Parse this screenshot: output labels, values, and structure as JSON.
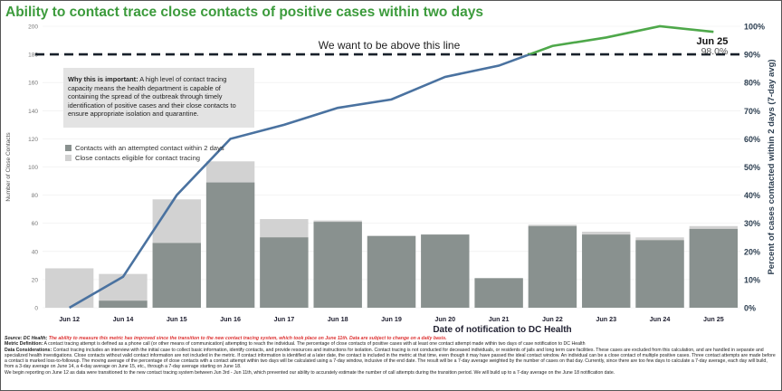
{
  "title": "Ability to contact trace close contacts of positive cases within two days",
  "info_box": {
    "heading": "Why this is important:",
    "body": " A high level of contact tracing capacity means the health department is capable of containing the spread of the outbreak through timely identification of positive cases and their close contacts to ensure appropriate isolation and quarantine."
  },
  "target_label": "We want to be above this line",
  "footnotes": {
    "source_label": "Source: DC Health;",
    "source_text": " The ability to measure this metric has improved since the transition to the new contact tracing system, which took place on June 11th. Data are subject to change on a daily basis.",
    "metric_label": "Metric Definition:",
    "metric_text": " A contact tracing attempt is defined as a phone call (or other means of communication) attempting to reach the individual. The percentage of close contacts of positive cases with at least one contact attempt made within two days of case notification to DC Health",
    "data_label": "Data Considerations:",
    "data_text": " Contact tracing includes an interview with the initial case to collect basic information, identify contacts, and provide resources and instructions for isolation. Contact tracing is not conducted for deceased individuals, or residents of jails and long term care facilities. These cases are excluded from this calculation, and are handled in separate and specialized health investigations. Close contacts without valid contact information are not included in the metric. If contact information is identified at a later date, the contact is included in the metric at that time, even though it may have passed the ideal contact window. An individual can be a close contact of multiple positive cases. Three contact attempts are made before a contact is marked loss-to-followup. The moving average of the percentage of close contacts with a contact attempt within two days will be calculated using a 7-day window, inclusive of the end date. The result will be a 7-day average weighted by the number of cases on that day. Currently, since there are too few days to calculate a 7-day average, each day will build, from a 3-day average on June 14, a 4-day average on June 15, etc., through a 7-day average starting on June 18.",
    "begin_text": "We begin reporting on June 12 as data were transitioned to the new contact tracing system between Jun 3rd - Jun 11th, which prevented our ability to accurately estimate the number of call attempts during the transition period. We will build up to a 7-day average on the June 18 notification date."
  },
  "chart_data": {
    "type": "bar",
    "categories": [
      "Jun 12",
      "Jun 14",
      "Jun 15",
      "Jun 16",
      "Jun 17",
      "Jun 18",
      "Jun 19",
      "Jun 20",
      "Jun 21",
      "Jun 22",
      "Jun 23",
      "Jun 24",
      "Jun 25"
    ],
    "series": [
      {
        "name": "Contacts with an attempted contact within 2 days",
        "values": [
          0,
          5,
          46,
          89,
          50,
          61,
          51,
          52,
          21,
          58,
          52,
          48,
          56
        ],
        "color": "#89918f"
      },
      {
        "name": "Close contacts eligible for contact tracing",
        "values": [
          28,
          24,
          77,
          104,
          63,
          62,
          51,
          52,
          21,
          59,
          54,
          50,
          58
        ],
        "color": "#d2d2d2"
      }
    ],
    "line": {
      "values_pct": [
        0,
        11,
        40,
        60,
        65,
        71,
        74,
        82,
        86,
        93,
        96,
        100,
        98
      ],
      "color_below_target": "#4a72a0",
      "color_above_target": "#4ea84a"
    },
    "target_pct": 90,
    "last_point_label": {
      "date": "Jun 25",
      "value": "98.0%"
    },
    "xlabel": "Date of notification to DC Health",
    "ylabel": "Number of Close Contacts",
    "y2label": "Percent of cases contacted within 2 days (7-day avg)",
    "ylim": [
      0,
      200
    ],
    "yticks": [
      "0",
      "20",
      "40",
      "60",
      "80",
      "100",
      "120",
      "140",
      "160",
      "180",
      "200"
    ],
    "y2lim": [
      0,
      100
    ],
    "y2ticks": [
      "0%",
      "10%",
      "20%",
      "30%",
      "40%",
      "50%",
      "60%",
      "70%",
      "80%",
      "90%",
      "100%"
    ],
    "legend_position": "upper-left"
  }
}
